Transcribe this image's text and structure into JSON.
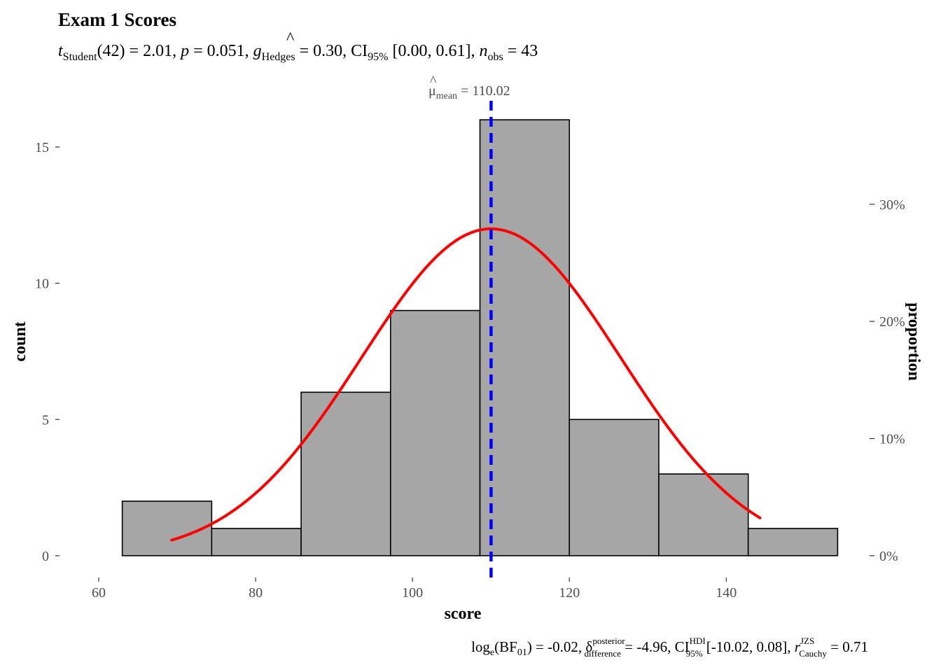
{
  "chart_data": {
    "type": "bar",
    "title": "Exam 1 Scores",
    "subtitle": {
      "t": "t",
      "t_sub": "Student",
      "part1": "(42) = 2.01, ",
      "p": "p",
      "part2": " = 0.051, ",
      "g": "g",
      "g_hat": "^",
      "g_sub": "Hedges",
      "part3": " = 0.30, CI",
      "ci_sub": "95%",
      "part4": " [0.00, 0.61], ",
      "n": "n",
      "n_sub": "obs",
      "part5": " = 43"
    },
    "caption": {
      "log": "log",
      "log_sub": "e",
      "bf": "(BF",
      "bf_sub": "01",
      "part1": ") = -0.02, ",
      "delta": "δ",
      "delta_hat": "^",
      "delta_sup": "posterior",
      "delta_sub": "difference",
      "part2": " = -4.96, CI",
      "ci_sup": "HDI",
      "ci_sub": "95%",
      "part3": " [-10.02, 0.08], ",
      "r": "r",
      "r_sup": "JZS",
      "r_sub": "Cauchy",
      "part4": " = 0.71"
    },
    "mean_label": {
      "mu": "μ",
      "hat": "^",
      "sub": "mean",
      "value": " = 110.02"
    },
    "xlabel": "score",
    "ylabel": "count",
    "y2label": "proportion",
    "xlim": [
      55.0,
      157.2
    ],
    "ylim": [
      -0.8,
      16.8
    ],
    "x_ticks": [
      60,
      80,
      100,
      120,
      140
    ],
    "y_ticks": [
      0,
      5,
      10,
      15
    ],
    "y2_ticks": [
      "0%",
      "10%",
      "20%",
      "30%"
    ],
    "y2_tick_values": [
      0,
      0.1,
      0.2,
      0.3
    ],
    "n_obs": 43,
    "bins": [
      {
        "x0": 63.0,
        "x1": 74.4,
        "count": 2
      },
      {
        "x0": 74.4,
        "x1": 85.8,
        "count": 1
      },
      {
        "x0": 85.8,
        "x1": 97.2,
        "count": 6
      },
      {
        "x0": 97.2,
        "x1": 108.6,
        "count": 9
      },
      {
        "x0": 108.6,
        "x1": 120.0,
        "count": 16
      },
      {
        "x0": 120.0,
        "x1": 131.4,
        "count": 5
      },
      {
        "x0": 131.4,
        "x1": 142.8,
        "count": 3
      },
      {
        "x0": 142.8,
        "x1": 154.2,
        "count": 1
      }
    ],
    "normal_curve": {
      "mean": 110.02,
      "sd": 16.5,
      "peak_count": 12.0,
      "x_range": [
        69.3,
        144.3
      ]
    },
    "mean_line": 110.02,
    "colors": {
      "bar_fill": "#a6a6a6",
      "bar_stroke": "#000000",
      "curve": "#ff0000",
      "mean_line": "#0000ff"
    }
  }
}
